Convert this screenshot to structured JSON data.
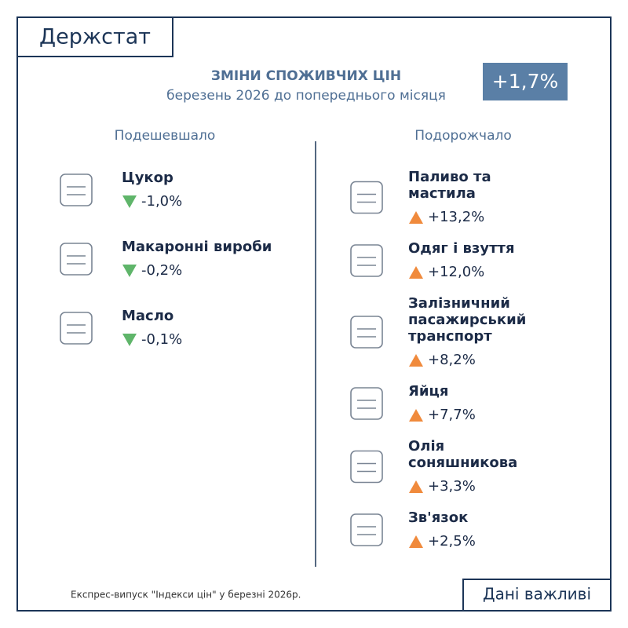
{
  "header": {
    "logo": "Держстат"
  },
  "title": "ЗМІНИ СПОЖИВЧИХ ЦІН",
  "subtitle": "березень 2026 до попереднього місяця",
  "badge": "+1,7%",
  "cheaper": {
    "heading": "Подешевшало",
    "items": [
      {
        "name": [
          "Цукор"
        ],
        "value": "-1,0%"
      },
      {
        "name": [
          "Макаронні вироби"
        ],
        "value": "-0,2%"
      },
      {
        "name": [
          "Масло"
        ],
        "value": "-0,1%"
      }
    ]
  },
  "pricier": {
    "heading": "Подорожчало",
    "items": [
      {
        "name": [
          "Паливо та",
          "мастила"
        ],
        "value": "+13,2%"
      },
      {
        "name": [
          "Одяг і взуття"
        ],
        "value": "+12,0%"
      },
      {
        "name": [
          "Залізничний",
          "пасажирський",
          "транспорт"
        ],
        "value": "+8,2%"
      },
      {
        "name": [
          "Яйця"
        ],
        "value": "+7,7%"
      },
      {
        "name": [
          "Олія",
          "соняшникова"
        ],
        "value": "+3,3%"
      },
      {
        "name": [
          "Зв'язок"
        ],
        "value": "+2,5%"
      }
    ]
  },
  "footer": {
    "note": "Експрес-випуск \"Індекси цін\" у березні 2026р.",
    "slogan": "Дані важливі"
  }
}
